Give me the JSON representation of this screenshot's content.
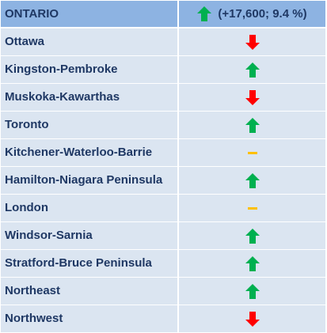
{
  "header": {
    "title": "ONTARIO",
    "trend": "up",
    "stat": "(+17,600; 9.4 %)"
  },
  "colors": {
    "header_bg": "#8db3e2",
    "row_bg": "#dbe5f1",
    "text": "#1f3864",
    "up": "#00b050",
    "down": "#ff0000",
    "neutral": "#ffc000"
  },
  "rows": [
    {
      "label": "Ottawa",
      "trend": "down"
    },
    {
      "label": "Kingston-Pembroke",
      "trend": "up"
    },
    {
      "label": "Muskoka-Kawarthas",
      "trend": "down"
    },
    {
      "label": "Toronto",
      "trend": "up"
    },
    {
      "label": "Kitchener-Waterloo-Barrie",
      "trend": "neutral"
    },
    {
      "label": "Hamilton-Niagara Peninsula",
      "trend": "up"
    },
    {
      "label": "London",
      "trend": "neutral"
    },
    {
      "label": "Windsor-Sarnia",
      "trend": "up"
    },
    {
      "label": "Stratford-Bruce Peninsula",
      "trend": "up"
    },
    {
      "label": "Northeast",
      "trend": "up"
    },
    {
      "label": "Northwest",
      "trend": "down"
    }
  ]
}
